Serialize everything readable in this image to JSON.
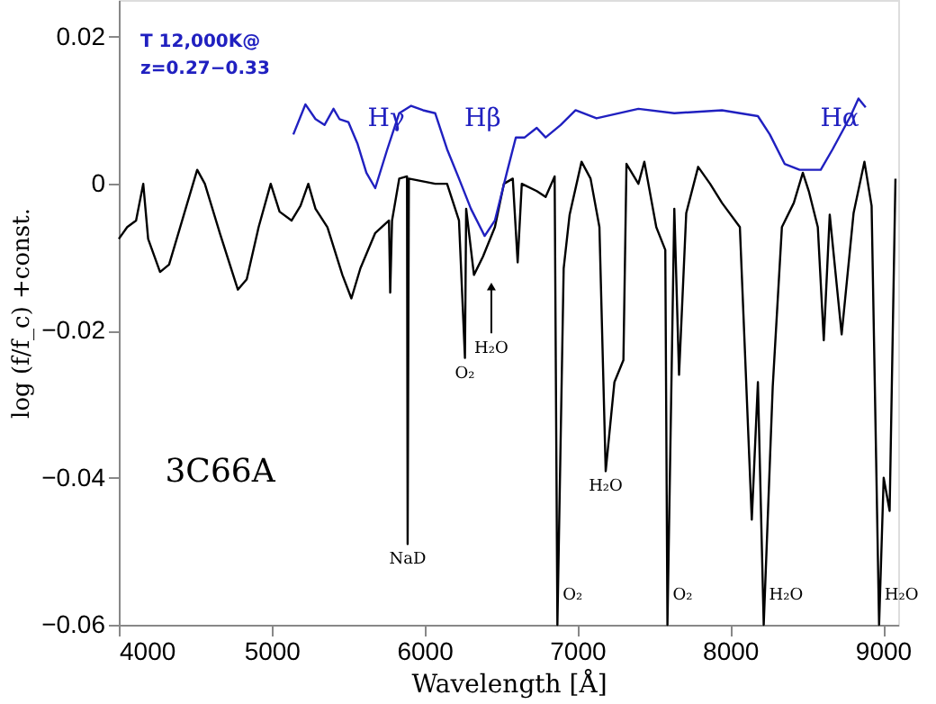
{
  "chart_data": {
    "type": "line",
    "xlabel": "Wavelength [Å]",
    "ylabel": "log (f/f_c) +const.",
    "xlim": [
      4000,
      9100
    ],
    "xticks": [
      4000,
      5000,
      6000,
      7000,
      8000,
      9000
    ],
    "ylim": [
      -0.06,
      0.025
    ],
    "yticks": [
      -0.06,
      -0.04,
      -0.02,
      0,
      0.02
    ],
    "grid": false,
    "marker": "none",
    "line_style": "solid",
    "series": [
      {
        "color": "#000000",
        "x": [
          4000,
          4055,
          4113,
          4160,
          4192,
          4270,
          4329,
          4426,
          4513,
          4563,
          4661,
          4779,
          4837,
          4915,
          4994,
          5052,
          5131,
          5189,
          5240,
          5287,
          5365,
          5463,
          5522,
          5581,
          5678,
          5768,
          5776,
          5788,
          5835,
          5886,
          5890,
          5898,
          6070,
          6148,
          6226,
          6265,
          6273,
          6324,
          6383,
          6461,
          6520,
          6578,
          6610,
          6637,
          6735,
          6793,
          6852,
          6870,
          6911,
          6950,
          7028,
          7087,
          7145,
          7186,
          7243,
          7302,
          7322,
          7400,
          7439,
          7517,
          7576,
          7590,
          7635,
          7666,
          7713,
          7791,
          7869,
          7947,
          8064,
          8142,
          8182,
          8220,
          8279,
          8339,
          8417,
          8476,
          8515,
          8574,
          8613,
          8652,
          8730,
          8808,
          8879,
          8926,
          8975,
          9005,
          9044,
          9082
        ],
        "values": [
          -0.0075,
          -0.0059,
          -0.005,
          0,
          -0.0075,
          -0.012,
          -0.011,
          -0.0042,
          0.0019,
          0,
          -0.0067,
          -0.0144,
          -0.013,
          -0.0059,
          0,
          -0.0038,
          -0.005,
          -0.003,
          0,
          -0.0034,
          -0.0059,
          -0.0124,
          -0.0156,
          -0.0115,
          -0.0067,
          -0.005,
          -0.0148,
          -0.005,
          0.0007,
          0.001,
          -0.049,
          0.0007,
          0,
          0,
          -0.005,
          -0.0237,
          -0.0034,
          -0.0124,
          -0.0099,
          -0.0059,
          0,
          0.0007,
          -0.0107,
          0,
          -0.001,
          -0.0018,
          0.001,
          -0.06,
          -0.0115,
          -0.0042,
          0.003,
          0.0007,
          -0.0059,
          -0.0391,
          -0.027,
          -0.024,
          0.0027,
          0,
          0.003,
          -0.0059,
          -0.009,
          -0.06,
          -0.0034,
          -0.026,
          -0.004,
          0.0023,
          0,
          -0.0026,
          -0.0059,
          -0.0457,
          -0.027,
          -0.06,
          -0.0276,
          -0.0059,
          -0.0026,
          0.0015,
          -0.001,
          -0.0059,
          -0.0213,
          -0.0042,
          -0.0205,
          -0.004,
          0.003,
          -0.003,
          -0.06,
          -0.04,
          -0.0445,
          0.0007
        ]
      },
      {
        "name": "T 12,000K@\nz=0.27−0.33",
        "color": "#2020c0",
        "x": [
          5142,
          5221,
          5287,
          5346,
          5405,
          5444,
          5502,
          5561,
          5620,
          5678,
          5757,
          5835,
          5913,
          5991,
          6070,
          6148,
          6226,
          6304,
          6394,
          6461,
          6539,
          6598,
          6656,
          6735,
          6793,
          6891,
          6989,
          7126,
          7400,
          7635,
          7947,
          8182,
          8260,
          8357,
          8455,
          8593,
          8671,
          8788,
          8840,
          8887
        ],
        "values": [
          0.0067,
          0.0108,
          0.0088,
          0.008,
          0.0102,
          0.0088,
          0.0084,
          0.0055,
          0.0015,
          -0.0006,
          0.0047,
          0.0096,
          0.0106,
          0.01,
          0.0096,
          0.0047,
          0.0007,
          -0.0034,
          -0.0071,
          -0.005,
          0.0015,
          0.0063,
          0.0063,
          0.0076,
          0.0063,
          0.008,
          0.01,
          0.0089,
          0.0102,
          0.0096,
          0.01,
          0.0092,
          0.0067,
          0.0027,
          0.0019,
          0.0019,
          0.0047,
          0.0092,
          0.0116,
          0.0104
        ]
      }
    ],
    "annotations": [
      "Hγ",
      "Hβ",
      "Hα",
      "3C66A",
      "H₂O",
      {
        "text": "O₂",
        "x": 6265,
        "y": -0.0237
      },
      {
        "text": "NaD",
        "x": 5890,
        "y": -0.049
      },
      {
        "text": "O₂",
        "x": 6870,
        "y": -0.06
      },
      {
        "text": "H₂O",
        "x": 7186,
        "y": -0.0391
      },
      {
        "text": "O₂",
        "x": 7590,
        "y": -0.06
      },
      {
        "text": "H₂O",
        "x": 8220,
        "y": -0.06
      },
      {
        "text": "H₂O",
        "x": 8975,
        "y": -0.06
      }
    ]
  }
}
